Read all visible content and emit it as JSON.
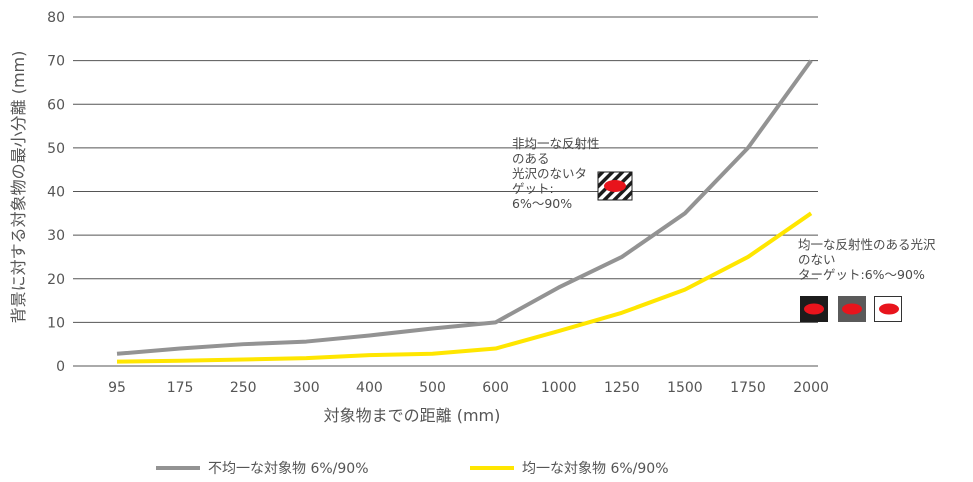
{
  "chart_data": {
    "type": "line",
    "ylabel": "背景に対する対象物の最小分離 (mm)",
    "xlabel": "対象物までの距離 (mm)",
    "categories": [
      "95",
      "175",
      "250",
      "300",
      "400",
      "500",
      "600",
      "1000",
      "1250",
      "1500",
      "1750",
      "2000"
    ],
    "yticks": [
      0,
      10,
      20,
      30,
      40,
      50,
      60,
      70,
      80
    ],
    "ylim": [
      0,
      80
    ],
    "grid": true,
    "legend_position": "bottom",
    "series": [
      {
        "name": "不均一な対象物 6%/90%",
        "color": "#939393",
        "values": [
          2.8,
          4,
          5,
          5.6,
          7,
          8.6,
          10,
          18,
          25,
          35,
          50,
          70
        ]
      },
      {
        "name": "均一な対象物 6%/90%",
        "color": "#ffe600",
        "values": [
          1,
          1.2,
          1.5,
          1.8,
          2.5,
          2.8,
          4,
          8,
          12.2,
          17.5,
          25,
          35
        ]
      }
    ],
    "annotations": [
      {
        "text": "非均一な反射性\nのある\n光沢のないタ\nゲット:\n6%〜90%"
      },
      {
        "text": "均一な反射性のある光沢\nのない\nターゲット:6%〜90%"
      }
    ]
  },
  "colors": {
    "grid": "#555555",
    "target_red": "#e8141c",
    "swatch_dark": "#1c1c1c",
    "swatch_mid": "#5a5a5a",
    "swatch_light": "#ffffff"
  }
}
